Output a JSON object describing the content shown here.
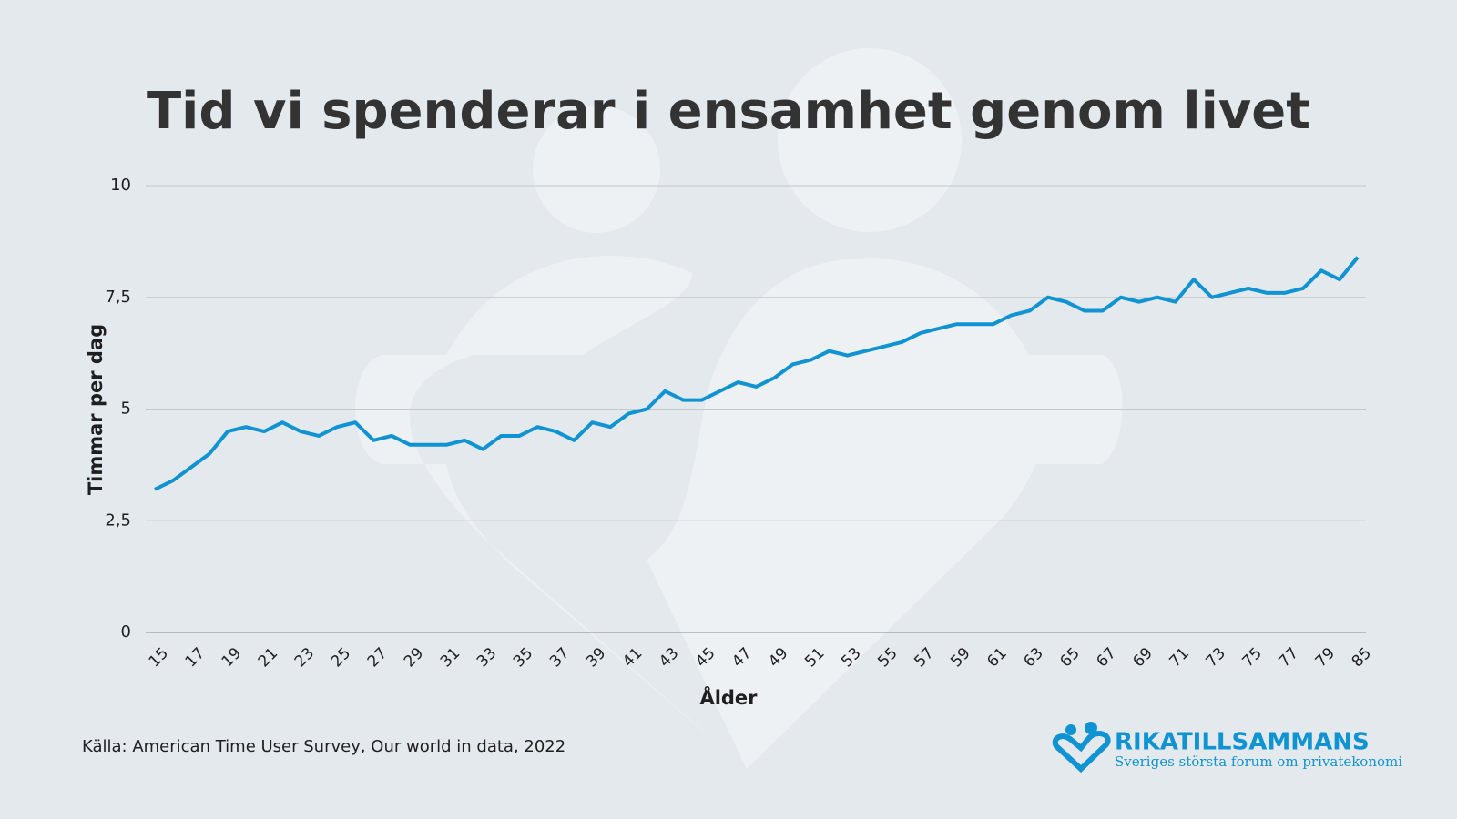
{
  "chart_data": {
    "type": "line",
    "title": "Tid vi spenderar i ensamhet genom livet",
    "x_label": "Ålder",
    "y_label": "Timmar per dag",
    "categories": [
      "15",
      null,
      "17",
      null,
      "19",
      null,
      "21",
      null,
      "23",
      null,
      "25",
      null,
      "27",
      null,
      "29",
      null,
      "31",
      null,
      "33",
      null,
      "35",
      null,
      "37",
      null,
      "39",
      null,
      "41",
      null,
      "43",
      null,
      "45",
      null,
      "47",
      null,
      "49",
      null,
      "51",
      null,
      "53",
      null,
      "55",
      null,
      "57",
      null,
      "59",
      null,
      "61",
      null,
      "63",
      null,
      "65",
      null,
      "67",
      null,
      "69",
      null,
      "71",
      null,
      "73",
      null,
      "75",
      null,
      "77",
      null,
      "79",
      null,
      "85"
    ],
    "values": [
      3.2,
      3.4,
      3.7,
      4.0,
      4.5,
      4.6,
      4.5,
      4.7,
      4.5,
      4.4,
      4.6,
      4.7,
      4.3,
      4.4,
      4.2,
      4.2,
      4.2,
      4.3,
      4.1,
      4.4,
      4.4,
      4.6,
      4.5,
      4.3,
      4.7,
      4.6,
      4.9,
      5.0,
      5.4,
      5.2,
      5.2,
      5.4,
      5.6,
      5.5,
      5.7,
      6.0,
      6.1,
      6.3,
      6.2,
      6.3,
      6.4,
      6.5,
      6.7,
      6.8,
      6.9,
      6.9,
      6.9,
      7.1,
      7.2,
      7.5,
      7.4,
      7.2,
      7.2,
      7.5,
      7.4,
      7.5,
      7.4,
      7.9,
      7.5,
      7.6,
      7.7,
      7.6,
      7.6,
      7.7,
      8.1,
      7.9,
      8.4
    ],
    "color": "#0f93d2",
    "ylim": [
      0,
      10
    ],
    "yticks": [
      0,
      {
        "value": 2.5,
        "label": "2,5"
      },
      5,
      {
        "value": 7.5,
        "label": "7,5"
      },
      10
    ],
    "grid": true,
    "source": "Källa: American Time User Survey, Our world in data, 2022"
  },
  "brand": {
    "name": "RIKATILLSAMMANS",
    "tagline": "Sveriges största forum om privatekonomi"
  }
}
